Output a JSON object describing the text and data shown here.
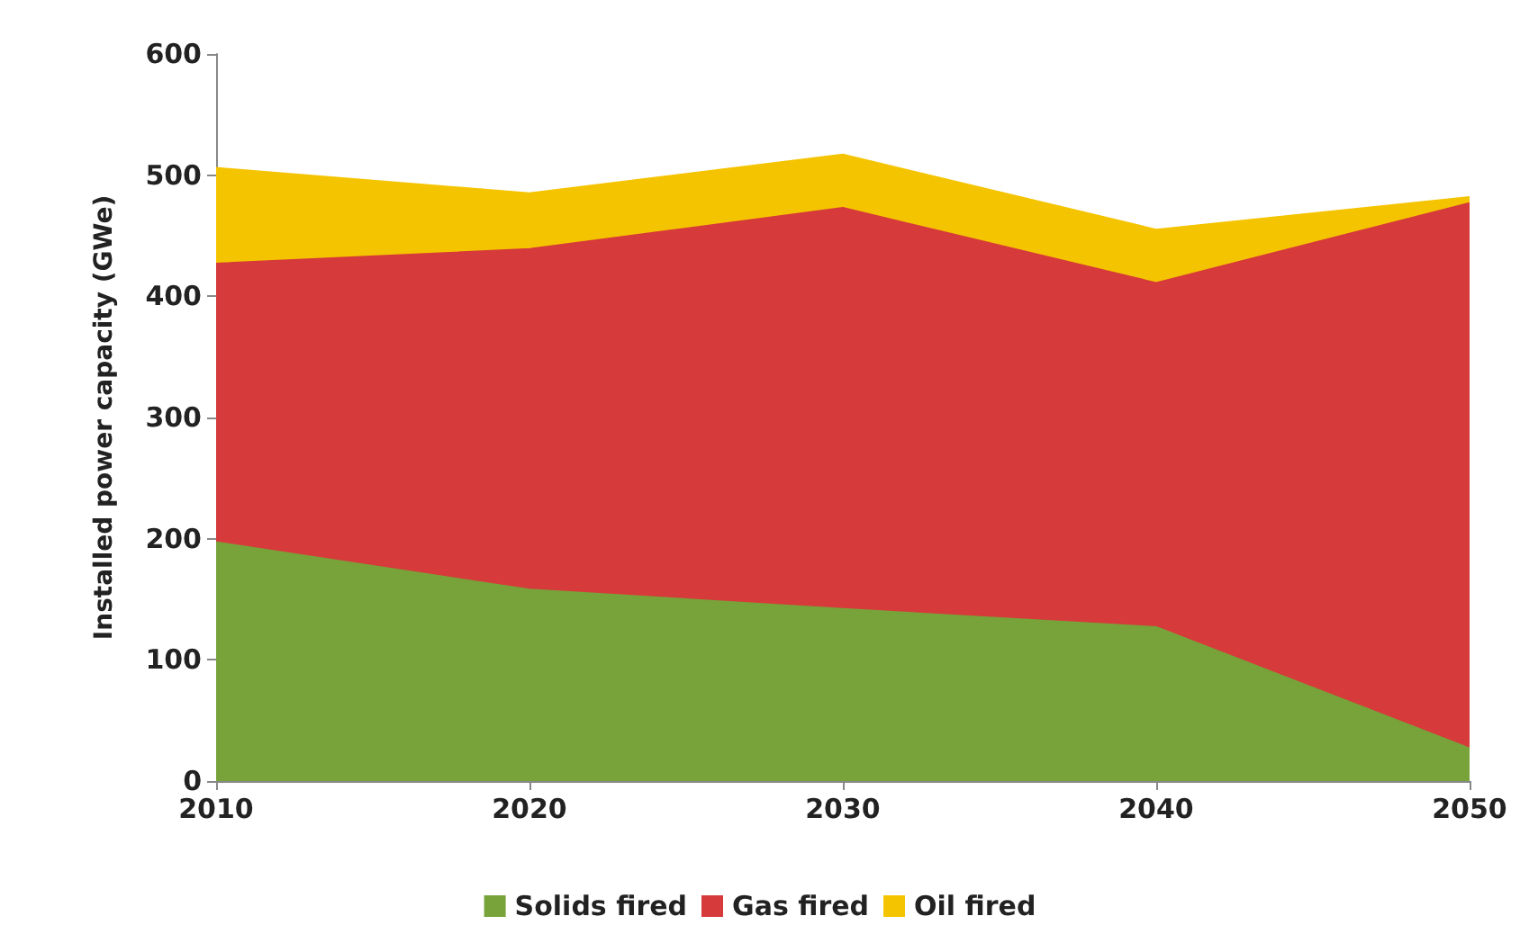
{
  "chart_data": {
    "type": "area",
    "stacked": true,
    "ylabel": "Installed power capacity (GWe)",
    "x": [
      2010,
      2020,
      2030,
      2040,
      2050
    ],
    "series": [
      {
        "name": "Solids fired",
        "color": "#77a33a",
        "values": [
          197,
          158,
          142,
          127,
          27
        ]
      },
      {
        "name": "Gas fired",
        "color": "#d63a3a",
        "values": [
          230,
          281,
          331,
          284,
          450
        ]
      },
      {
        "name": "Oil fired",
        "color": "#f5c400",
        "values": [
          79,
          46,
          44,
          44,
          5
        ]
      }
    ],
    "xlim": [
      2010,
      2050
    ],
    "xticks": [
      2010,
      2020,
      2030,
      2040,
      2050
    ],
    "ylim": [
      0,
      600
    ],
    "yticks": [
      0,
      100,
      200,
      300,
      400,
      500,
      600
    ],
    "grid": false,
    "legend": "bottom",
    "marker": "none"
  }
}
